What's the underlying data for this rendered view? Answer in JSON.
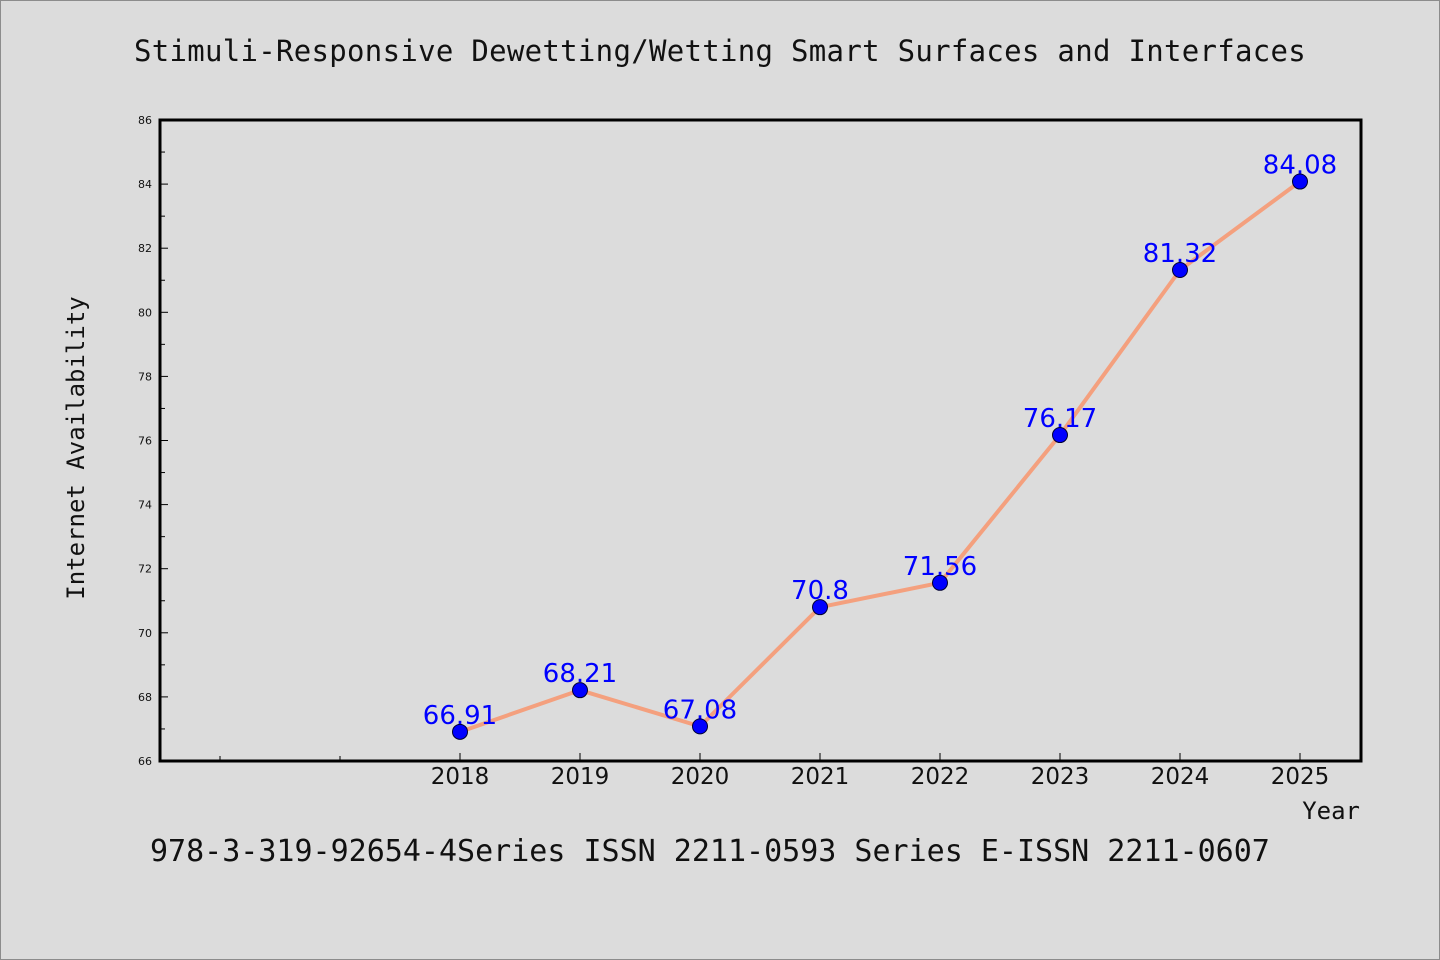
{
  "chart_data": {
    "type": "line",
    "title": "Stimuli-Responsive Dewetting/Wetting Smart Surfaces and Interfaces",
    "xlabel": "Year",
    "ylabel": "Internet Availability",
    "x": [
      "2018",
      "2019",
      "2020",
      "2021",
      "2022",
      "2023",
      "2024",
      "2025"
    ],
    "series": [
      {
        "values": [
          66.91,
          68.21,
          67.08,
          70.8,
          71.56,
          76.17,
          81.32,
          84.08
        ],
        "data_labels": [
          "66.91",
          "68.21",
          "67.08",
          "70.8",
          "71.56",
          "76.17",
          "81.32",
          "84.08"
        ]
      }
    ],
    "ylim": [
      66,
      86
    ],
    "yticks": [
      "66",
      "68",
      "70",
      "72",
      "74",
      "76",
      "78",
      "80",
      "82",
      "84",
      "86"
    ],
    "grid": false,
    "line_color": "#f4a07e",
    "marker_color": "#0000ff",
    "label_color": "#0000ff"
  },
  "footer": {
    "text": "978-3-319-92654-4Series ISSN 2211-0593 Series E-ISSN 2211-0607"
  }
}
